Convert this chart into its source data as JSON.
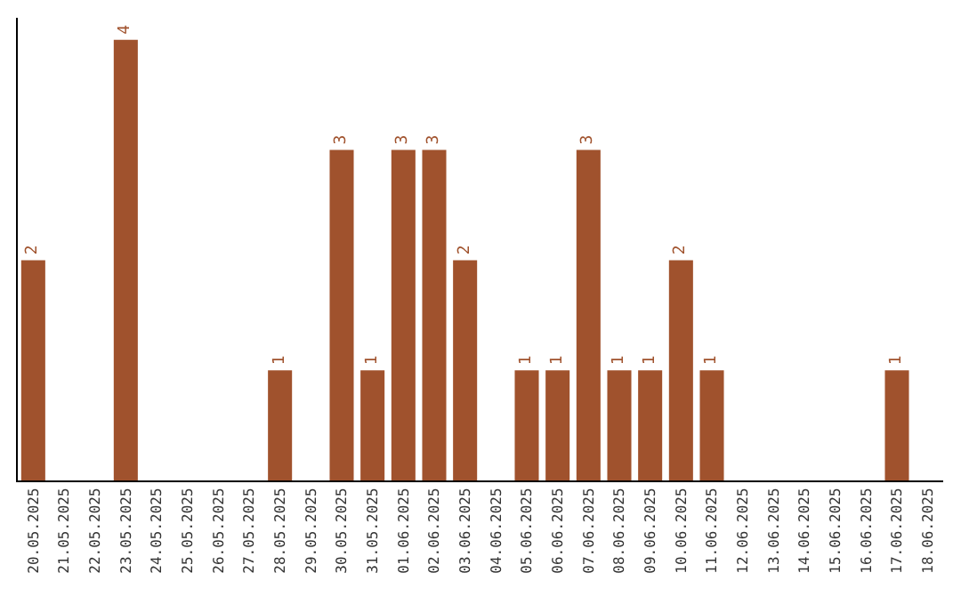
{
  "chart_data": {
    "type": "bar",
    "categories": [
      "20.05.2025",
      "21.05.2025",
      "22.05.2025",
      "23.05.2025",
      "24.05.2025",
      "25.05.2025",
      "26.05.2025",
      "27.05.2025",
      "28.05.2025",
      "29.05.2025",
      "30.05.2025",
      "31.05.2025",
      "01.06.2025",
      "02.06.2025",
      "03.06.2025",
      "04.06.2025",
      "05.06.2025",
      "06.06.2025",
      "07.06.2025",
      "08.06.2025",
      "09.06.2025",
      "10.06.2025",
      "11.06.2025",
      "12.06.2025",
      "13.06.2025",
      "14.06.2025",
      "15.06.2025",
      "16.06.2025",
      "17.06.2025",
      "18.06.2025"
    ],
    "values": [
      2,
      null,
      null,
      4,
      null,
      null,
      null,
      null,
      1,
      null,
      3,
      1,
      3,
      3,
      2,
      null,
      1,
      1,
      3,
      1,
      1,
      2,
      1,
      null,
      null,
      null,
      null,
      null,
      1,
      null
    ],
    "color": "#a0522d",
    "ylim": [
      0,
      4.2
    ],
    "tick_labels": "x",
    "legend": false,
    "data_labels": true
  }
}
